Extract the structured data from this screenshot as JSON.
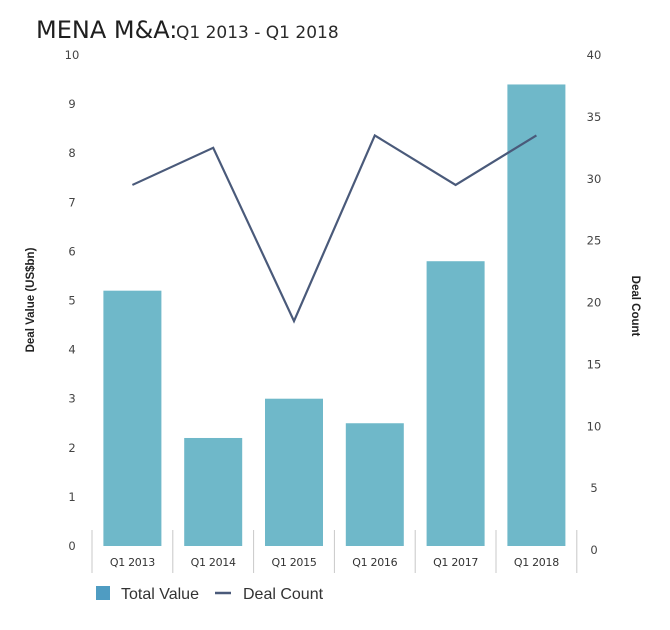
{
  "chart_data": {
    "type": "bar",
    "title": "MENA M&A:",
    "subtitle": "Q1 2013 - Q1 2018",
    "categories": [
      "Q1 2013",
      "Q1 2014",
      "Q1 2015",
      "Q1 2016",
      "Q1 2017",
      "Q1 2018"
    ],
    "series": [
      {
        "name": "Total Value",
        "type": "bar",
        "axis": "left",
        "color": "#6fb8c9",
        "legend_color": "#4f9cc2",
        "values": [
          5.2,
          2.2,
          3.0,
          2.5,
          5.8,
          9.4
        ]
      },
      {
        "name": "Deal Count",
        "type": "line",
        "axis": "right",
        "color": "#4a5a7a",
        "values": [
          29.5,
          32.5,
          18.5,
          33.5,
          29.5,
          33.5
        ]
      }
    ],
    "ylabel": "Deal Value (US$bn)",
    "ylim": [
      0,
      10
    ],
    "yticks": [
      "0",
      "1",
      "2",
      "3",
      "4",
      "5",
      "6",
      "7",
      "8",
      "9",
      "10"
    ],
    "y2label": "Deal Count",
    "y2lim": [
      0,
      40
    ],
    "y2ticks": [
      "0",
      "5",
      "10",
      "15",
      "20",
      "25",
      "30",
      "35",
      "40"
    ],
    "grid": false,
    "legend": "bottom-left"
  }
}
